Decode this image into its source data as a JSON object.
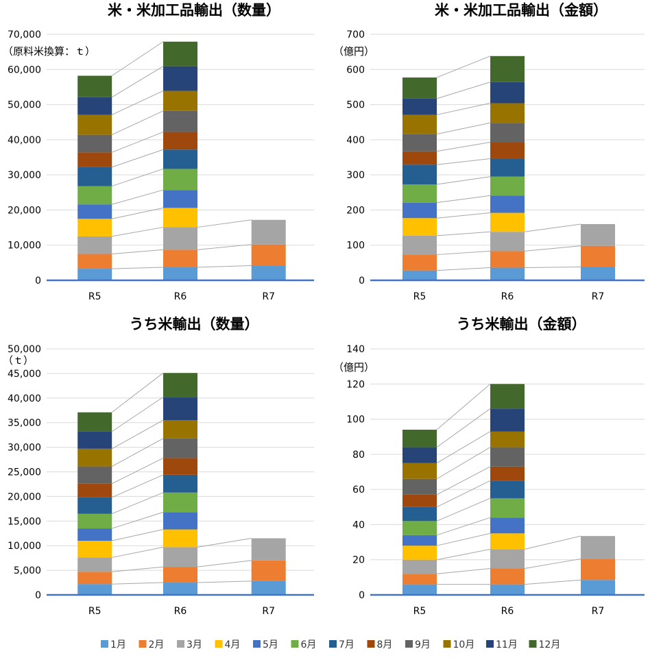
{
  "months": [
    "1月",
    "2月",
    "3月",
    "4月",
    "5月",
    "6月",
    "7月",
    "8月",
    "9月",
    "10月",
    "11月",
    "12月"
  ],
  "month_colors": [
    "#5B9BD5",
    "#ED7D31",
    "#A5A5A5",
    "#FFC000",
    "#4472C4",
    "#70AD47",
    "#255E91",
    "#9E480E",
    "#636363",
    "#997300",
    "#264478",
    "#43682B"
  ],
  "axis_color": "#4472C4",
  "chart_data": [
    {
      "type": "bar",
      "stacked": true,
      "title": "米・米加工品輸出（数量）",
      "unit": "（原料米換算：ｔ）",
      "categories": [
        "R5",
        "R6",
        "R7"
      ],
      "ylim": [
        0,
        70000
      ],
      "yticks": [
        0,
        10000,
        20000,
        30000,
        40000,
        50000,
        60000,
        70000
      ],
      "series": [
        {
          "name": "1月",
          "values": [
            3300,
            3700,
            4200
          ]
        },
        {
          "name": "2月",
          "values": [
            4200,
            5000,
            6000
          ]
        },
        {
          "name": "3月",
          "values": [
            5000,
            6400,
            7000
          ]
        },
        {
          "name": "4月",
          "values": [
            5000,
            5500,
            null
          ]
        },
        {
          "name": "5月",
          "values": [
            4100,
            5100,
            null
          ]
        },
        {
          "name": "6月",
          "values": [
            5200,
            6000,
            null
          ]
        },
        {
          "name": "7月",
          "values": [
            5400,
            5500,
            null
          ]
        },
        {
          "name": "8月",
          "values": [
            4200,
            5000,
            null
          ]
        },
        {
          "name": "9月",
          "values": [
            5000,
            6000,
            null
          ]
        },
        {
          "name": "10月",
          "values": [
            5700,
            5700,
            null
          ]
        },
        {
          "name": "11月",
          "values": [
            5000,
            7000,
            null
          ]
        },
        {
          "name": "12月",
          "values": [
            6100,
            7000,
            null
          ]
        }
      ]
    },
    {
      "type": "bar",
      "stacked": true,
      "title": "米・米加工品輸出（金額）",
      "unit": "（億円）",
      "categories": [
        "R5",
        "R6",
        "R7"
      ],
      "ylim": [
        0,
        700
      ],
      "yticks": [
        0,
        100,
        200,
        300,
        400,
        500,
        600,
        700
      ],
      "series": [
        {
          "name": "1月",
          "values": [
            28,
            36,
            38
          ]
        },
        {
          "name": "2月",
          "values": [
            45,
            47,
            60
          ]
        },
        {
          "name": "3月",
          "values": [
            54,
            55,
            62
          ]
        },
        {
          "name": "4月",
          "values": [
            50,
            54,
            null
          ]
        },
        {
          "name": "5月",
          "values": [
            44,
            49,
            null
          ]
        },
        {
          "name": "6月",
          "values": [
            52,
            54,
            null
          ]
        },
        {
          "name": "7月",
          "values": [
            56,
            51,
            null
          ]
        },
        {
          "name": "8月",
          "values": [
            38,
            47,
            null
          ]
        },
        {
          "name": "9月",
          "values": [
            49,
            55,
            null
          ]
        },
        {
          "name": "10月",
          "values": [
            55,
            56,
            null
          ]
        },
        {
          "name": "11月",
          "values": [
            46,
            60,
            null
          ]
        },
        {
          "name": "12月",
          "values": [
            60,
            74,
            null
          ]
        }
      ]
    },
    {
      "type": "bar",
      "stacked": true,
      "title": "うち米輸出（数量）",
      "unit": "（ｔ）",
      "categories": [
        "R5",
        "R6",
        "R7"
      ],
      "ylim": [
        0,
        50000
      ],
      "yticks": [
        0,
        5000,
        10000,
        15000,
        20000,
        25000,
        30000,
        35000,
        40000,
        45000,
        50000
      ],
      "series": [
        {
          "name": "1月",
          "values": [
            2200,
            2500,
            2800
          ]
        },
        {
          "name": "2月",
          "values": [
            2500,
            3200,
            4200
          ]
        },
        {
          "name": "3月",
          "values": [
            2900,
            4000,
            4500
          ]
        },
        {
          "name": "4月",
          "values": [
            3400,
            3600,
            null
          ]
        },
        {
          "name": "5月",
          "values": [
            2500,
            3500,
            null
          ]
        },
        {
          "name": "6月",
          "values": [
            3000,
            4000,
            null
          ]
        },
        {
          "name": "7月",
          "values": [
            3300,
            3600,
            null
          ]
        },
        {
          "name": "8月",
          "values": [
            2800,
            3400,
            null
          ]
        },
        {
          "name": "9月",
          "values": [
            3500,
            4000,
            null
          ]
        },
        {
          "name": "10月",
          "values": [
            3600,
            3700,
            null
          ]
        },
        {
          "name": "11月",
          "values": [
            3500,
            4700,
            null
          ]
        },
        {
          "name": "12月",
          "values": [
            3900,
            4900,
            null
          ]
        }
      ]
    },
    {
      "type": "bar",
      "stacked": true,
      "title": "うち米輸出（金額）",
      "unit": "（億円）",
      "categories": [
        "R5",
        "R6",
        "R7"
      ],
      "ylim": [
        0,
        140
      ],
      "yticks": [
        0,
        20,
        40,
        60,
        80,
        100,
        120,
        140
      ],
      "series": [
        {
          "name": "1月",
          "values": [
            6,
            6,
            8.5
          ]
        },
        {
          "name": "2月",
          "values": [
            6,
            9,
            12
          ]
        },
        {
          "name": "3月",
          "values": [
            8,
            11,
            13
          ]
        },
        {
          "name": "4月",
          "values": [
            8,
            9,
            null
          ]
        },
        {
          "name": "5月",
          "values": [
            6,
            9,
            null
          ]
        },
        {
          "name": "6月",
          "values": [
            8,
            11,
            null
          ]
        },
        {
          "name": "7月",
          "values": [
            8,
            10,
            null
          ]
        },
        {
          "name": "8月",
          "values": [
            7,
            8,
            null
          ]
        },
        {
          "name": "9月",
          "values": [
            9,
            11,
            null
          ]
        },
        {
          "name": "10月",
          "values": [
            9,
            9,
            null
          ]
        },
        {
          "name": "11月",
          "values": [
            9,
            13,
            null
          ]
        },
        {
          "name": "12月",
          "values": [
            10,
            14,
            null
          ]
        }
      ]
    }
  ]
}
